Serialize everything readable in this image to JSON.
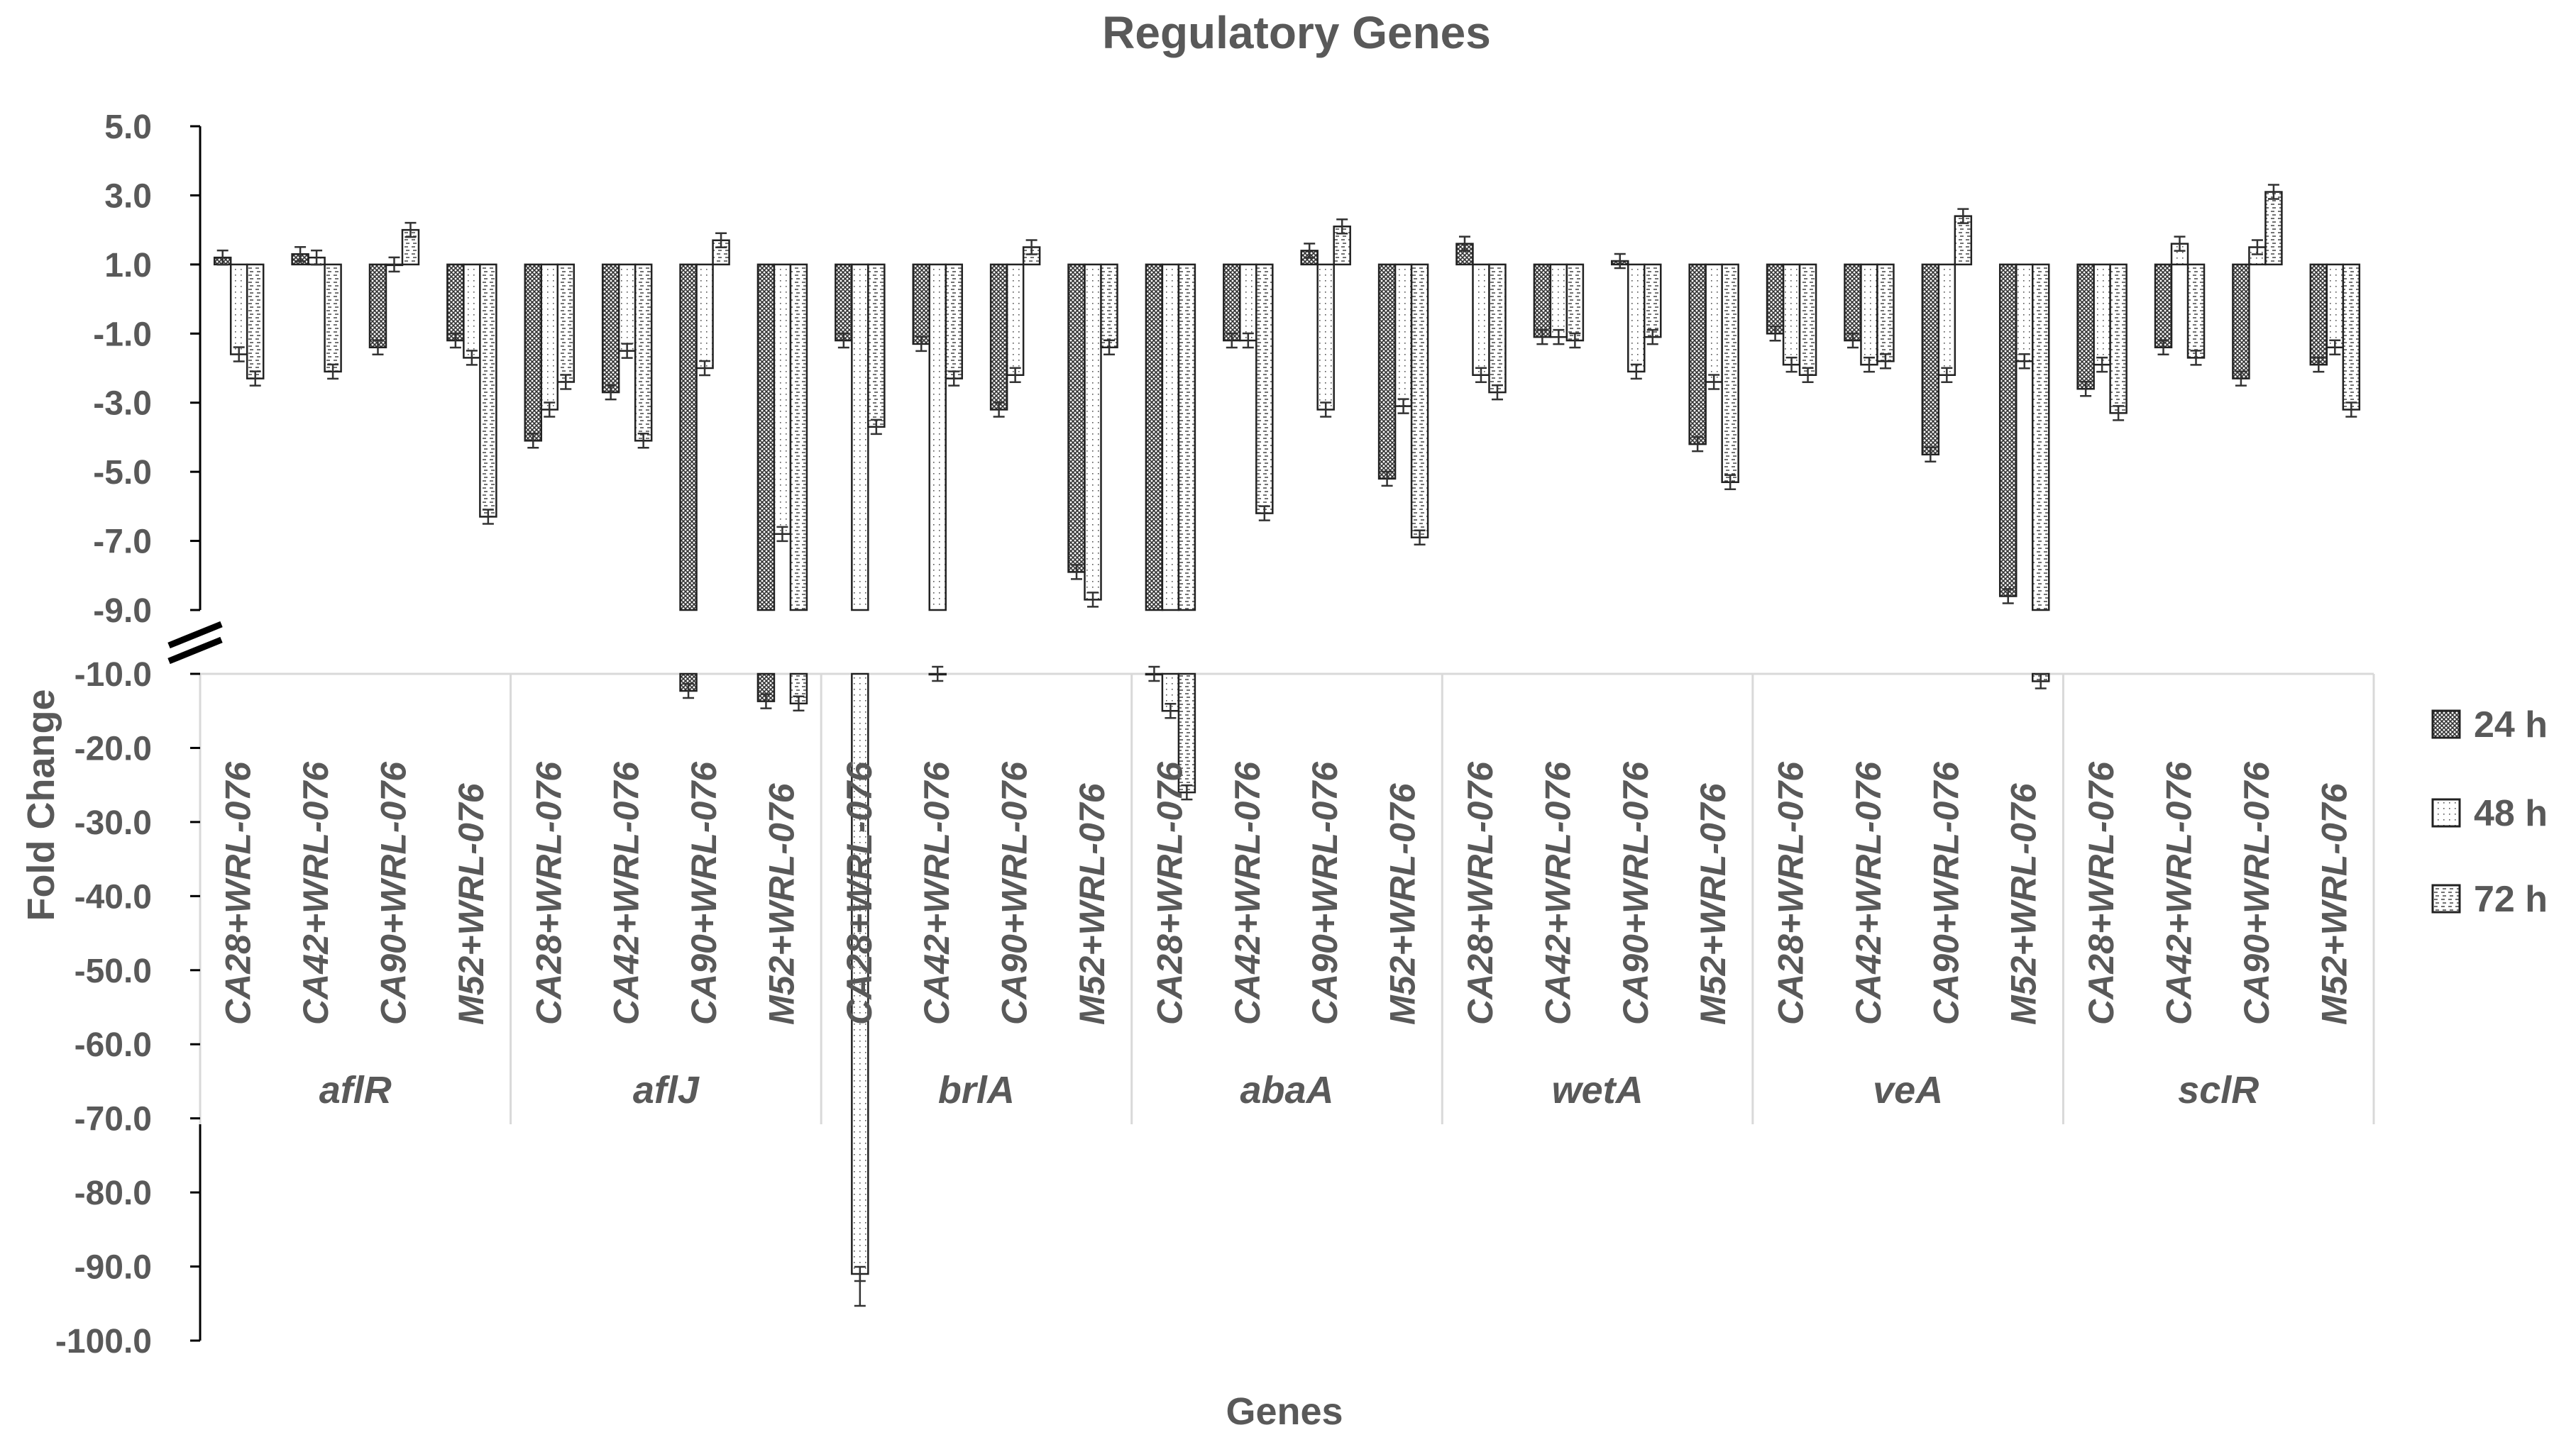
{
  "chart_data": {
    "type": "bar",
    "title": "Regulatory Genes",
    "xlabel": "Genes",
    "ylabel": "Fold Change",
    "axis_break": true,
    "upper_segment": {
      "ylim": [
        -9.0,
        5.0
      ],
      "ticks": [
        "5.0",
        "3.0",
        "1.0",
        "-1.0",
        "-3.0",
        "-5.0",
        "-7.0",
        "-9.0"
      ],
      "baseline": 1.0
    },
    "lower_segment": {
      "ylim": [
        -100.0,
        -10.0
      ],
      "ticks": [
        "-10.0",
        "-20.0",
        "-30.0",
        "-40.0",
        "-50.0",
        "-60.0",
        "-70.0",
        "-80.0",
        "-90.0",
        "-100.0"
      ]
    },
    "legend_position": "right",
    "genes": [
      "aflR",
      "aflJ",
      "brlA",
      "abaA",
      "wetA",
      "veA",
      "sclR"
    ],
    "treatments": [
      "CA28+WRL-076",
      "CA42+WRL-076",
      "CA90+WRL-076",
      "M52+WRL-076"
    ],
    "series": [
      {
        "name": "24 h",
        "values": [
          1.2,
          1.3,
          -1.4,
          -1.2,
          -4.1,
          -2.7,
          -12.3,
          -13.7,
          -1.2,
          -1.3,
          -3.2,
          -7.9,
          -10.0,
          -1.2,
          1.4,
          -5.2,
          1.6,
          -1.1,
          1.1,
          -4.2,
          -1.0,
          -1.2,
          -4.5,
          -8.6,
          -2.6,
          -1.4,
          -2.3,
          -1.9
        ]
      },
      {
        "name": "48 h",
        "values": [
          -1.6,
          1.2,
          1.0,
          -1.7,
          -3.2,
          -1.5,
          -2.0,
          -6.8,
          -91.0,
          -10.0,
          -2.2,
          -8.7,
          -15.0,
          -1.2,
          -3.2,
          -3.1,
          -2.2,
          -1.1,
          -2.1,
          -2.4,
          -1.9,
          -1.9,
          -2.2,
          -1.8,
          -1.9,
          1.6,
          1.5,
          -1.4
        ]
      },
      {
        "name": "72 h",
        "values": [
          -2.3,
          -2.1,
          2.0,
          -6.3,
          -2.4,
          -4.1,
          1.7,
          -14.0,
          -3.7,
          -2.3,
          1.5,
          -1.4,
          -26.0,
          -6.2,
          2.1,
          -6.9,
          -2.7,
          -1.2,
          -1.1,
          -5.3,
          -2.2,
          -1.8,
          2.4,
          -11.0,
          -3.3,
          -1.7,
          3.1,
          -3.2
        ]
      }
    ]
  }
}
